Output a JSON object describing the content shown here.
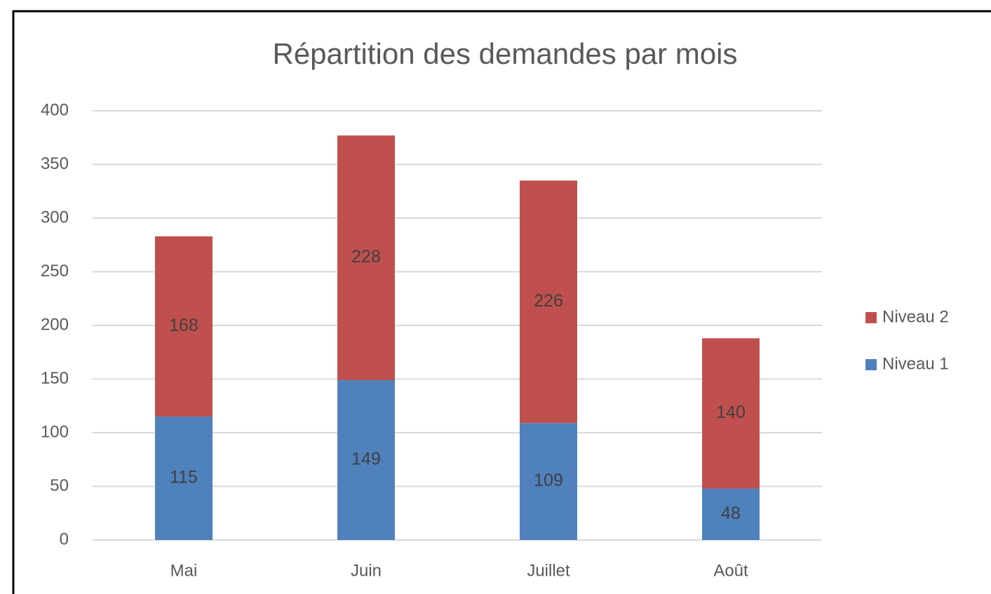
{
  "chart_data": {
    "type": "bar",
    "stacked": true,
    "title": "Répartition des demandes par mois",
    "categories": [
      "Mai",
      "Juin",
      "Juillet",
      "Août"
    ],
    "series": [
      {
        "name": "Niveau 1",
        "color": "#4f81bd",
        "values": [
          115,
          149,
          109,
          48
        ]
      },
      {
        "name": "Niveau 2",
        "color": "#c0504d",
        "values": [
          168,
          228,
          226,
          140
        ]
      }
    ],
    "ylim": [
      0,
      400
    ],
    "yticks": [
      0,
      50,
      100,
      150,
      200,
      250,
      300,
      350,
      400
    ],
    "grid": true,
    "legend": "right"
  }
}
